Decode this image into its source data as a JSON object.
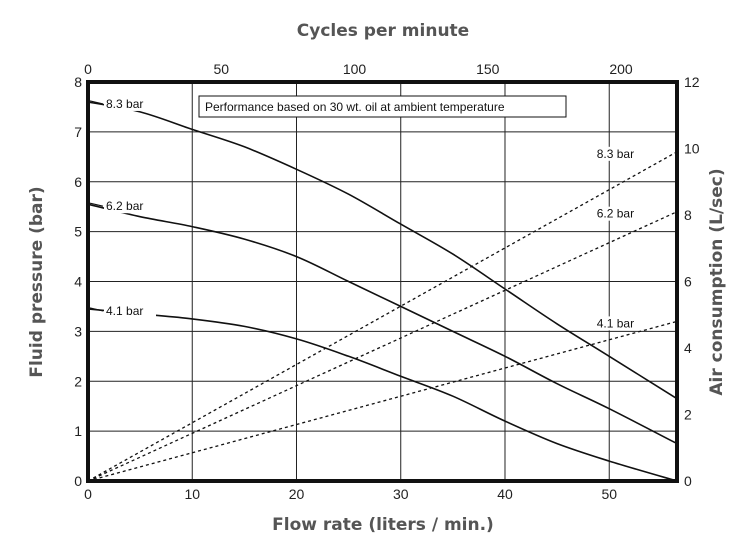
{
  "chart_data": {
    "type": "line",
    "top_axis": {
      "label": "Cycles per minute",
      "ticks": [
        0,
        50,
        100,
        150,
        200
      ],
      "range": [
        0,
        221
      ]
    },
    "x_axis": {
      "label": "Flow rate (liters / min.)",
      "ticks": [
        0,
        10,
        20,
        30,
        40,
        50
      ],
      "range": [
        0,
        56.5
      ]
    },
    "y_left": {
      "label": "Fluid pressure (bar)",
      "ticks": [
        0,
        1,
        2,
        3,
        4,
        5,
        6,
        7,
        8
      ],
      "range": [
        0,
        8
      ]
    },
    "y_right": {
      "label": "Air consumption (L/sec)",
      "ticks": [
        0,
        2,
        4,
        6,
        8,
        10,
        12
      ],
      "range": [
        0,
        12
      ]
    },
    "annotation": "Performance based on 30 wt. oil at ambient temperature",
    "grid": true,
    "series": [
      {
        "name": "8.3 bar",
        "kind": "fluid-pressure",
        "axis": "left",
        "style": "solid",
        "points": [
          [
            0,
            7.6
          ],
          [
            5,
            7.4
          ],
          [
            10,
            7.05
          ],
          [
            15,
            6.7
          ],
          [
            20,
            6.25
          ],
          [
            25,
            5.75
          ],
          [
            30,
            5.15
          ],
          [
            35,
            4.55
          ],
          [
            40,
            3.85
          ],
          [
            45,
            3.15
          ],
          [
            50,
            2.5
          ],
          [
            56.5,
            1.65
          ]
        ]
      },
      {
        "name": "6.2 bar",
        "kind": "fluid-pressure",
        "axis": "left",
        "style": "solid",
        "points": [
          [
            0,
            5.55
          ],
          [
            5,
            5.3
          ],
          [
            10,
            5.1
          ],
          [
            15,
            4.85
          ],
          [
            20,
            4.5
          ],
          [
            25,
            4.0
          ],
          [
            30,
            3.5
          ],
          [
            35,
            3.0
          ],
          [
            40,
            2.5
          ],
          [
            45,
            1.95
          ],
          [
            50,
            1.45
          ],
          [
            56.5,
            0.75
          ]
        ]
      },
      {
        "name": "4.1 bar",
        "kind": "fluid-pressure",
        "axis": "left",
        "style": "solid",
        "points": [
          [
            0,
            3.45
          ],
          [
            5,
            3.35
          ],
          [
            10,
            3.25
          ],
          [
            15,
            3.1
          ],
          [
            20,
            2.85
          ],
          [
            25,
            2.5
          ],
          [
            30,
            2.1
          ],
          [
            35,
            1.7
          ],
          [
            40,
            1.2
          ],
          [
            45,
            0.75
          ],
          [
            50,
            0.4
          ],
          [
            56.5,
            0.0
          ]
        ]
      },
      {
        "name": "8.3 bar",
        "kind": "air-consumption",
        "axis": "right",
        "style": "dashed",
        "points": [
          [
            0,
            0
          ],
          [
            56.5,
            9.9
          ]
        ]
      },
      {
        "name": "6.2 bar",
        "kind": "air-consumption",
        "axis": "right",
        "style": "dashed",
        "points": [
          [
            0,
            0
          ],
          [
            56.5,
            8.1
          ]
        ]
      },
      {
        "name": "4.1 bar",
        "kind": "air-consumption",
        "axis": "right",
        "style": "dashed",
        "points": [
          [
            0,
            0
          ],
          [
            56.5,
            4.8
          ]
        ]
      }
    ]
  }
}
